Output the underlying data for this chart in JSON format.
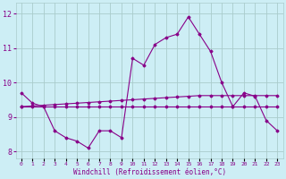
{
  "xlabel": "Windchill (Refroidissement éolien,°C)",
  "background_color": "#cdeef5",
  "grid_color": "#aacccc",
  "line_color": "#880088",
  "x_hours": [
    0,
    1,
    2,
    3,
    4,
    5,
    6,
    7,
    8,
    9,
    10,
    11,
    12,
    13,
    14,
    15,
    16,
    17,
    18,
    19,
    20,
    21,
    22,
    23
  ],
  "windchill": [
    9.7,
    9.4,
    9.3,
    8.6,
    8.4,
    8.3,
    8.1,
    8.6,
    8.6,
    8.4,
    10.7,
    10.5,
    11.1,
    11.3,
    11.4,
    11.9,
    11.4,
    10.9,
    10.0,
    9.3,
    9.7,
    9.6,
    8.9,
    8.6
  ],
  "flat_line": [
    9.3,
    9.3,
    9.3,
    9.3,
    9.3,
    9.3,
    9.3,
    9.3,
    9.3,
    9.3,
    9.3,
    9.3,
    9.3,
    9.3,
    9.3,
    9.3,
    9.3,
    9.3,
    9.3,
    9.3,
    9.3,
    9.3,
    9.3,
    9.3
  ],
  "rising_line": [
    9.3,
    9.32,
    9.34,
    9.36,
    9.38,
    9.4,
    9.42,
    9.44,
    9.46,
    9.48,
    9.5,
    9.52,
    9.54,
    9.56,
    9.58,
    9.6,
    9.62,
    9.62,
    9.62,
    9.62,
    9.62,
    9.62,
    9.62,
    9.62
  ],
  "ylim": [
    7.8,
    12.3
  ],
  "yticks": [
    8,
    9,
    10,
    11,
    12
  ],
  "xlim": [
    -0.5,
    23.5
  ]
}
